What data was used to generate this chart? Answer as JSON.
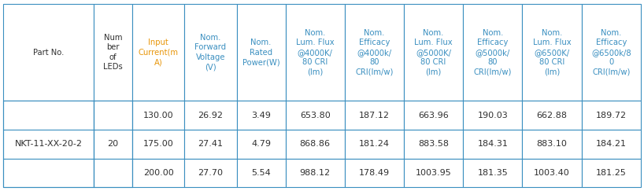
{
  "col_widths": [
    1.3,
    0.55,
    0.75,
    0.75,
    0.7,
    0.85,
    0.85,
    0.85,
    0.85,
    0.85,
    0.85
  ],
  "header_labels": [
    "Part No.",
    "Num\nber\nof\nLEDs",
    "Input\nCurrent(m\nA)",
    "Nom.\nForward\nVoltage\n(V)",
    "Nom.\nRated\nPower(W)",
    "Nom.\nLum. Flux\n@4000K/\n80 CRI\n(lm)",
    "Nom.\nEfficacy\n@4000k/\n80\nCRI(lm/w)",
    "Nom.\nLum. Flux\n@5000K/\n80 CRI\n(lm)",
    "Nom.\nEfficacy\n@5000k/\n80\nCRI(lm/w)",
    "Nom.\nLum. Flux\n@6500K/\n80 CRI\n(lm)",
    "Nom.\nEfficacy\n@6500k/8\n0\nCRI(lm/w)"
  ],
  "header_colors": [
    "#303030",
    "#303030",
    "#E8960A",
    "#3A8FC0",
    "#3A8FC0",
    "#3A8FC0",
    "#3A8FC0",
    "#3A8FC0",
    "#3A8FC0",
    "#3A8FC0",
    "#3A8FC0"
  ],
  "rows": [
    [
      "NKT-11-XX-20-2",
      "20",
      "130.00",
      "26.92",
      "3.49",
      "653.80",
      "187.12",
      "663.96",
      "190.03",
      "662.88",
      "189.72"
    ],
    [
      "",
      "",
      "175.00",
      "27.41",
      "4.79",
      "868.86",
      "181.24",
      "883.58",
      "184.31",
      "883.10",
      "184.21"
    ],
    [
      "",
      "",
      "200.00",
      "27.70",
      "5.54",
      "988.12",
      "178.49",
      "1003.95",
      "181.35",
      "1003.40",
      "181.25"
    ]
  ],
  "border_color": "#3A8FC0",
  "bg_color": "#FFFFFF",
  "text_color": "#303030",
  "header_fontsize": 7.2,
  "data_fontsize": 8.0,
  "fig_width": 8.18,
  "fig_height": 2.43,
  "dpi": 100
}
